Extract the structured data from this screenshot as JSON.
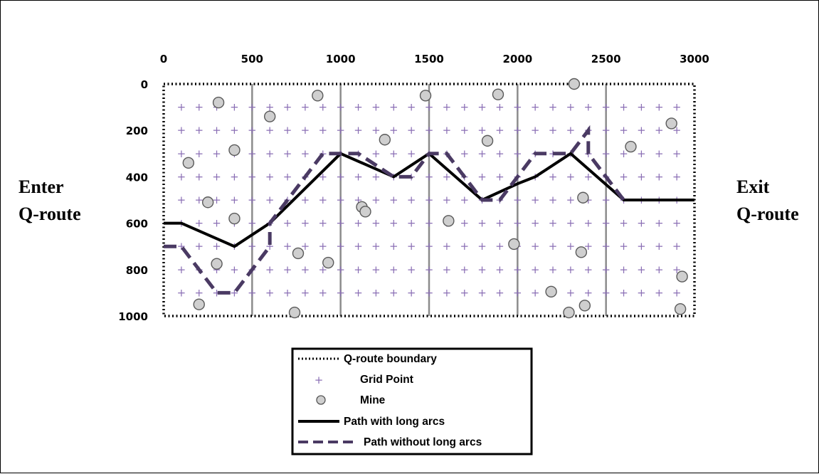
{
  "chart_data": {
    "type": "scatter",
    "title": "",
    "x_ticks": [
      "0",
      "500",
      "1000",
      "1500",
      "2000",
      "2500",
      "3000"
    ],
    "y_ticks": [
      "0",
      "200",
      "400",
      "600",
      "800",
      "1000"
    ],
    "xlim": [
      0,
      3000
    ],
    "ylim": [
      0,
      1000
    ],
    "y_inverted": true,
    "x_axis_position": "top",
    "grid": true,
    "grid_spacing": [
      100,
      100
    ],
    "left_label": [
      "Enter",
      "Q-route"
    ],
    "right_label": [
      "Exit",
      "Q-route"
    ],
    "legend_position": "bottom-center",
    "legend": [
      "Q-route boundary",
      "Grid Point",
      "Mine",
      "Path with long arcs",
      "Path without long arcs"
    ],
    "colors": {
      "grid_point": "#8b6fb5",
      "mine_fill": "#cfcfcf",
      "path_with": "#000000",
      "path_without": "#4a3a63",
      "gridline": "#8c8c8c"
    },
    "mines": [
      {
        "x": 310,
        "y": 80
      },
      {
        "x": 870,
        "y": 50
      },
      {
        "x": 1480,
        "y": 50
      },
      {
        "x": 1890,
        "y": 45
      },
      {
        "x": 2320,
        "y": 0
      },
      {
        "x": 600,
        "y": 140
      },
      {
        "x": 2870,
        "y": 170
      },
      {
        "x": 1250,
        "y": 240
      },
      {
        "x": 1830,
        "y": 245
      },
      {
        "x": 400,
        "y": 285
      },
      {
        "x": 2640,
        "y": 270
      },
      {
        "x": 140,
        "y": 340
      },
      {
        "x": 250,
        "y": 510
      },
      {
        "x": 2370,
        "y": 490
      },
      {
        "x": 1120,
        "y": 530
      },
      {
        "x": 1140,
        "y": 550
      },
      {
        "x": 400,
        "y": 580
      },
      {
        "x": 1610,
        "y": 590
      },
      {
        "x": 1980,
        "y": 690
      },
      {
        "x": 760,
        "y": 730
      },
      {
        "x": 2360,
        "y": 725
      },
      {
        "x": 930,
        "y": 770
      },
      {
        "x": 300,
        "y": 775
      },
      {
        "x": 2190,
        "y": 895
      },
      {
        "x": 200,
        "y": 950
      },
      {
        "x": 2380,
        "y": 955
      },
      {
        "x": 740,
        "y": 985
      },
      {
        "x": 2290,
        "y": 985
      },
      {
        "x": 2930,
        "y": 830
      },
      {
        "x": 2920,
        "y": 970
      }
    ],
    "series": [
      {
        "name": "Path with long arcs",
        "style": "solid",
        "points": [
          [
            0,
            600
          ],
          [
            100,
            600
          ],
          [
            400,
            700
          ],
          [
            600,
            600
          ],
          [
            1000,
            300
          ],
          [
            1300,
            400
          ],
          [
            1500,
            300
          ],
          [
            1800,
            500
          ],
          [
            2000,
            430
          ],
          [
            2100,
            400
          ],
          [
            2300,
            300
          ],
          [
            2600,
            500
          ],
          [
            3000,
            500
          ]
        ]
      },
      {
        "name": "Path without long arcs",
        "style": "dashed",
        "points": [
          [
            0,
            700
          ],
          [
            100,
            700
          ],
          [
            300,
            900
          ],
          [
            400,
            900
          ],
          [
            600,
            700
          ],
          [
            600,
            600
          ],
          [
            900,
            300
          ],
          [
            1000,
            300
          ],
          [
            1100,
            300
          ],
          [
            1300,
            400
          ],
          [
            1400,
            400
          ],
          [
            1500,
            300
          ],
          [
            1600,
            300
          ],
          [
            1800,
            500
          ],
          [
            1900,
            500
          ],
          [
            2100,
            300
          ],
          [
            2300,
            300
          ],
          [
            2400,
            200
          ],
          [
            2400,
            300
          ],
          [
            2600,
            500
          ]
        ]
      }
    ]
  }
}
